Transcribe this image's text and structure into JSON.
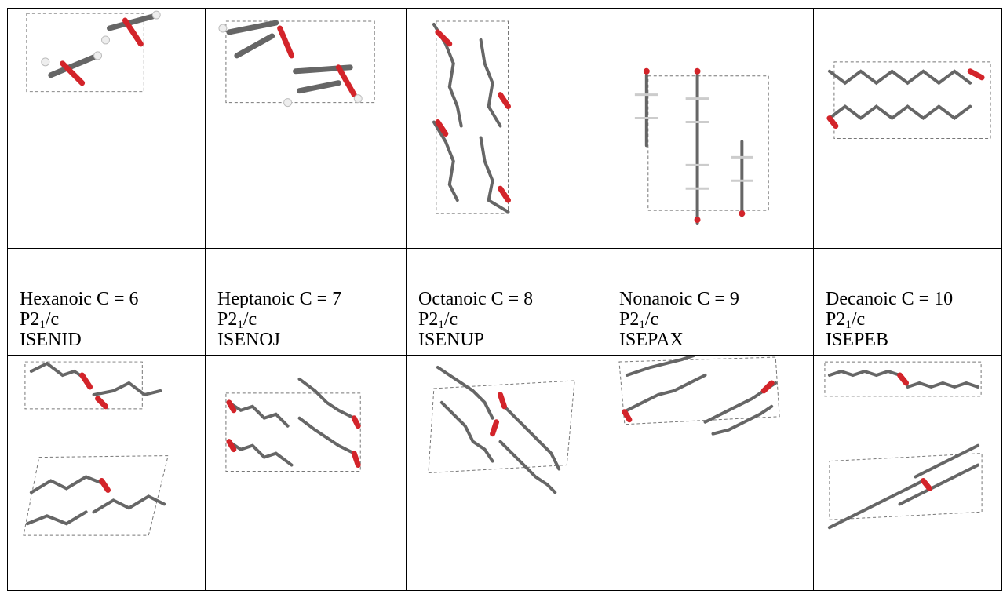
{
  "columns": [
    {
      "name": "Hexanoic",
      "carbon_label": "C = 6",
      "space_group": {
        "main": "P2",
        "sub": "1",
        "rest": "/c"
      },
      "refcode": "ISENID"
    },
    {
      "name": "Heptanoic",
      "carbon_label": "C = 7",
      "space_group": {
        "main": "P2",
        "sub": "1",
        "rest": "/c"
      },
      "refcode": "ISENOJ"
    },
    {
      "name": "Octanoic",
      "carbon_label": "C = 8",
      "space_group": {
        "main": "P2",
        "sub": "1",
        "rest": "/c"
      },
      "refcode": "ISENUP"
    },
    {
      "name": "Nonanoic",
      "carbon_label": "C = 9",
      "space_group": {
        "main": "P2",
        "sub": "1",
        "rest": "/c"
      },
      "refcode": "ISEPAX"
    },
    {
      "name": "Decanoic",
      "carbon_label": "C = 10",
      "space_group": {
        "main": "P2",
        "sub": "1",
        "rest": "/c"
      },
      "refcode": "ISEPEB"
    }
  ],
  "colors": {
    "carbon": "#666666",
    "oxygen": "#d3242a",
    "hydrogen": "#eeeeee",
    "border": "#000000"
  }
}
